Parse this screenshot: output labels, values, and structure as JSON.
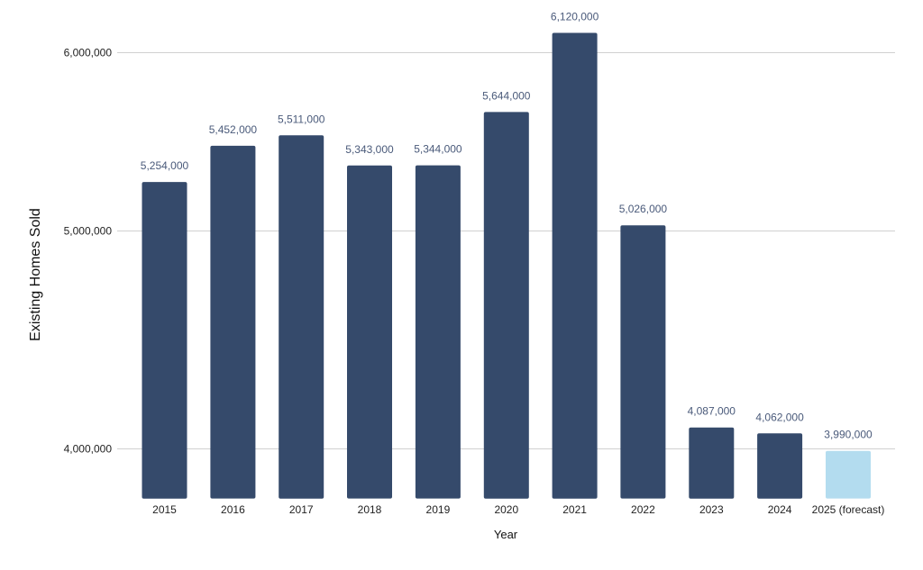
{
  "chart_data": {
    "type": "bar",
    "title": "",
    "xlabel": "Year",
    "ylabel": "Existing Homes Sold",
    "scale": "log",
    "ylim": [
      3800000,
      6250000
    ],
    "yticks": [
      4000000,
      5000000,
      6000000
    ],
    "ytick_labels": [
      "4,000,000",
      "5,000,000",
      "6,000,000"
    ],
    "categories": [
      "2015",
      "2016",
      "2017",
      "2018",
      "2019",
      "2020",
      "2021",
      "2022",
      "2023",
      "2024",
      "2025 (forecast)"
    ],
    "values": [
      5254000,
      5452000,
      5511000,
      5343000,
      5344000,
      5644000,
      6120000,
      5026000,
      4087000,
      4062000,
      3990000
    ],
    "value_labels": [
      "5,254,000",
      "5,452,000",
      "5,511,000",
      "5,343,000",
      "5,344,000",
      "5,644,000",
      "6,120,000",
      "5,026,000",
      "4,087,000",
      "4,062,000",
      "3,990,000"
    ],
    "bar_colors": [
      "#354a6b",
      "#354a6b",
      "#354a6b",
      "#354a6b",
      "#354a6b",
      "#354a6b",
      "#354a6b",
      "#354a6b",
      "#354a6b",
      "#354a6b",
      "#b3dcef"
    ],
    "grid": true,
    "legend": "none"
  }
}
